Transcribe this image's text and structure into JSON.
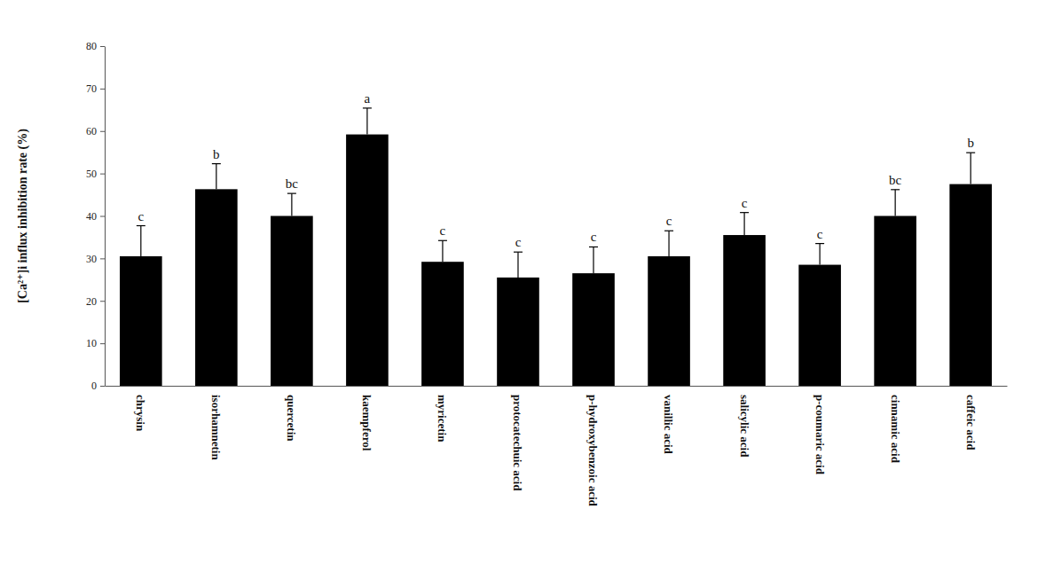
{
  "chart_data": {
    "type": "bar",
    "y_label": "[Ca²⁺]i influx inhibition rate (%)",
    "categories": [
      "chrysin",
      "isorhamnetin",
      "quercetin",
      "kaempferol",
      "myricetin",
      "protocatechuic acid",
      "p-hydroxybenzoic acid",
      "vanillic acid",
      "salicylic acid",
      "p-coumaric acid",
      "cinnamic acid",
      "caffeic acid"
    ],
    "values": [
      30.5,
      46.3,
      40.0,
      59.2,
      29.2,
      25.5,
      26.5,
      30.5,
      35.5,
      28.5,
      40.0,
      47.5
    ],
    "errors": [
      7.2,
      6.0,
      5.3,
      6.2,
      5.0,
      6.0,
      6.2,
      6.0,
      5.3,
      5.0,
      6.2,
      7.4
    ],
    "annotations": [
      "c",
      "b",
      "bc",
      "a",
      "c",
      "c",
      "c",
      "c",
      "c",
      "c",
      "bc",
      "b"
    ],
    "color": "#000000",
    "ylim": [
      0,
      80
    ],
    "yticks": [
      0,
      10,
      20,
      30,
      40,
      50,
      60,
      70,
      80
    ],
    "grid": false
  }
}
